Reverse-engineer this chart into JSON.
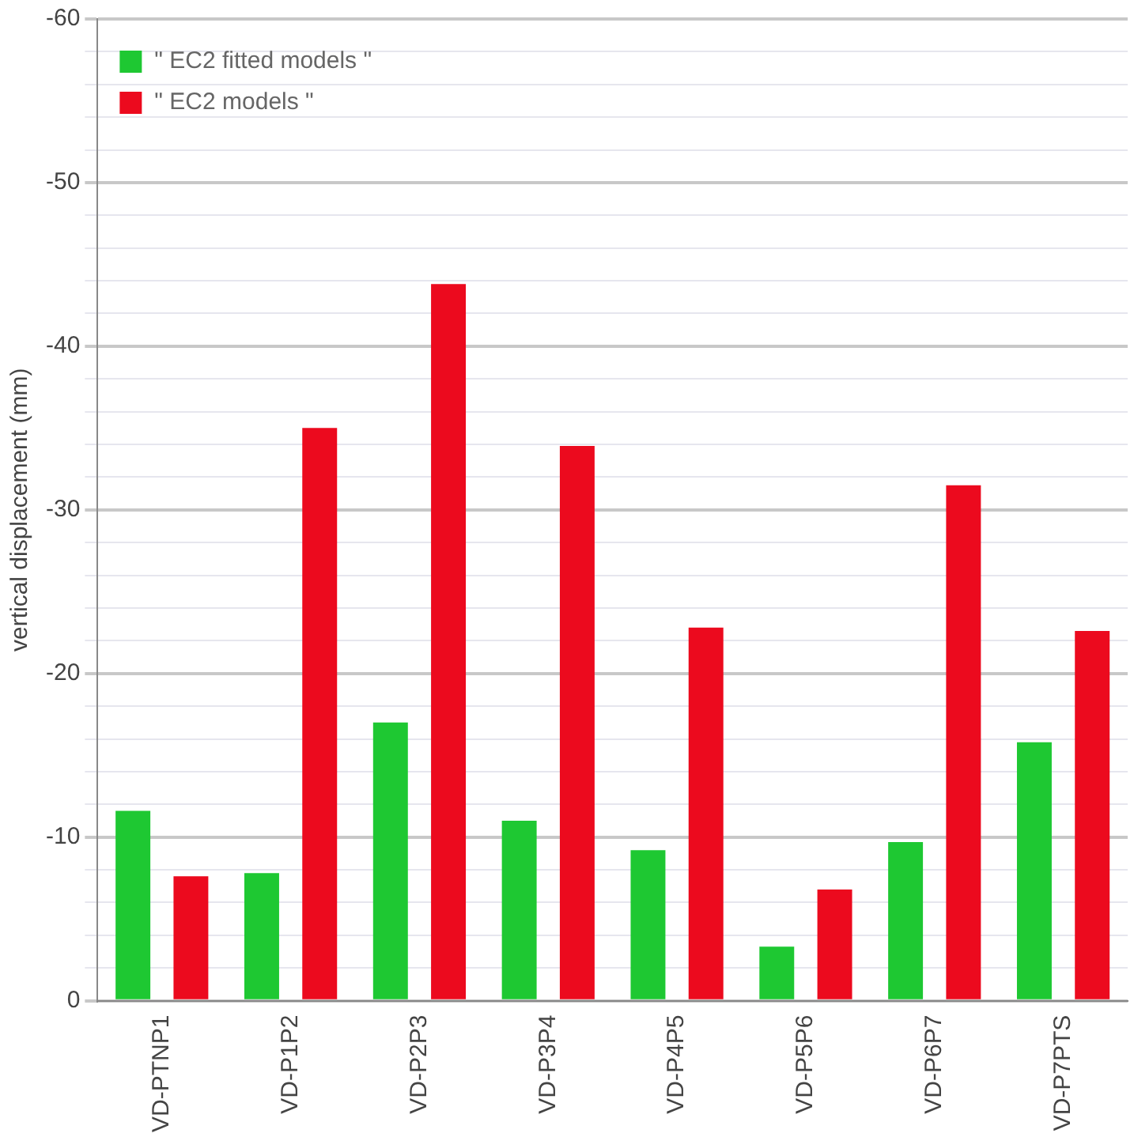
{
  "chart_data": {
    "type": "bar",
    "ylabel": "vertical displacement (mm)",
    "categories": [
      "VD-PTNP1",
      "VD-P1P2",
      "VD-P2P3",
      "VD-P3P4",
      "VD-P4P5",
      "VD-P5P6",
      "VD-P6P7",
      "VD-P7PTS"
    ],
    "series": [
      {
        "name": "\" EC2 fitted models \"",
        "color": "#1ec832",
        "values": [
          -11.6,
          -7.8,
          -17.0,
          -11.0,
          -9.2,
          -3.3,
          -9.7,
          -15.8
        ]
      },
      {
        "name": "\" EC2 models \"",
        "color": "#ec0a1e",
        "values": [
          -7.6,
          -35.0,
          -43.8,
          -33.9,
          -22.8,
          -6.8,
          -31.5,
          -22.6
        ]
      }
    ],
    "ylim": [
      0,
      -60
    ],
    "yticks": [
      0,
      {
        "value": -2,
        "label": null
      },
      {
        "value": -4,
        "label": null
      },
      {
        "value": -6,
        "label": null
      },
      {
        "value": -8,
        "label": null
      },
      -10,
      {
        "value": -12,
        "label": null
      },
      {
        "value": -14,
        "label": null
      },
      {
        "value": -16,
        "label": null
      },
      {
        "value": -18,
        "label": null
      },
      -20,
      {
        "value": -22,
        "label": null
      },
      {
        "value": -24,
        "label": null
      },
      {
        "value": -26,
        "label": null
      },
      {
        "value": -28,
        "label": null
      },
      -30,
      {
        "value": -32,
        "label": null
      },
      {
        "value": -34,
        "label": null
      },
      {
        "value": -36,
        "label": null
      },
      {
        "value": -38,
        "label": null
      },
      -40,
      {
        "value": -42,
        "label": null
      },
      {
        "value": -44,
        "label": null
      },
      {
        "value": -46,
        "label": null
      },
      {
        "value": -48,
        "label": null
      },
      -50,
      {
        "value": -52,
        "label": null
      },
      {
        "value": -54,
        "label": null
      },
      {
        "value": -56,
        "label": null
      },
      {
        "value": -58,
        "label": null
      },
      -60
    ],
    "grid": "y",
    "legend": "top left"
  }
}
